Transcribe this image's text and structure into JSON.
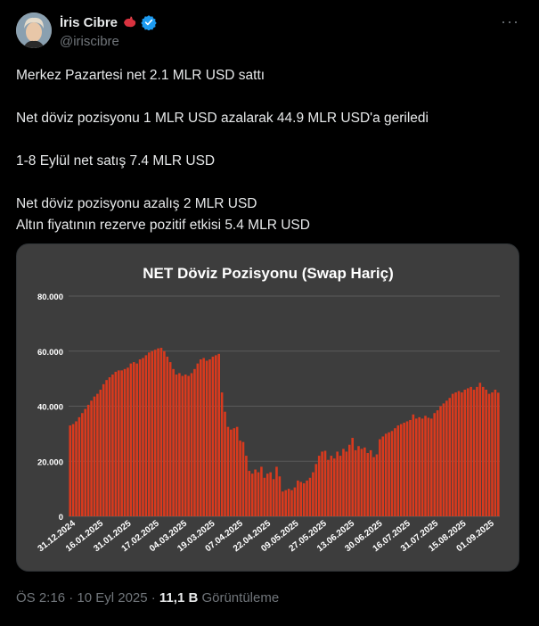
{
  "author": {
    "name": "İris Cibre",
    "handle": "@iriscibre",
    "verified_color": "#1d9bf0",
    "emoji_color": "#d9323f"
  },
  "tweet_lines": [
    "Merkez Pazartesi net 2.1 MLR USD sattı",
    "",
    "Net döviz pozisyonu 1 MLR USD azalarak 44.9 MLR USD'a geriledi",
    "",
    "1-8 Eylül net satış 7.4 MLR USD",
    "",
    "Net döviz pozisyonu azalış 2 MLR USD",
    "Altın fiyatının rezerve pozitif etkisi 5.4 MLR USD"
  ],
  "meta": {
    "time": "ÖS 2:16 · 10 Eyl 2025 · ",
    "views": "11,1 B",
    "views_label": " Görüntüleme"
  },
  "chart_data": {
    "type": "bar",
    "title": "NET Döviz Pozisyonu (Swap Hariç)",
    "ylim": [
      0,
      80000
    ],
    "y_ticks": [
      "0",
      "20.000",
      "40.000",
      "60.000",
      "80.000"
    ],
    "y_tick_values": [
      0,
      20000,
      40000,
      60000,
      80000
    ],
    "x_tick_labels": [
      "31.12.2024",
      "16.01.2025",
      "31.01.2025",
      "17.02.2025",
      "04.03.2025",
      "19.03.2025",
      "07.04.2025",
      "22.04.2025",
      "09.05.2025",
      "27.05.2025",
      "13.06.2025",
      "30.06.2025",
      "16.07.2025",
      "31.07.2025",
      "15.08.2025",
      "01.09.2025"
    ],
    "bar_color": "#d93a1e",
    "grid": true,
    "values": [
      33000,
      33500,
      34500,
      36000,
      37500,
      39000,
      40500,
      42000,
      43500,
      44500,
      46000,
      48000,
      49500,
      50500,
      51500,
      52500,
      53000,
      53000,
      53500,
      54000,
      55500,
      56000,
      55500,
      57000,
      57500,
      58500,
      59500,
      60000,
      60500,
      61000,
      61200,
      60000,
      58000,
      56000,
      53500,
      51500,
      52000,
      51000,
      51500,
      51000,
      52000,
      53500,
      55500,
      57000,
      57500,
      56500,
      57000,
      58000,
      58500,
      59000,
      45000,
      38000,
      32500,
      31500,
      32000,
      32500,
      27500,
      27000,
      22000,
      16500,
      15500,
      17000,
      16000,
      18000,
      14000,
      15500,
      16000,
      13500,
      18000,
      14500,
      9000,
      9500,
      10000,
      9500,
      10500,
      13000,
      12500,
      12000,
      13000,
      14000,
      16000,
      19000,
      22000,
      23500,
      23800,
      20500,
      22000,
      21000,
      23500,
      22000,
      24500,
      23500,
      26000,
      28500,
      24000,
      25500,
      24500,
      25000,
      23000,
      24000,
      21500,
      22500,
      28000,
      29000,
      30000,
      30500,
      31000,
      32000,
      33000,
      33500,
      34000,
      34500,
      35000,
      37000,
      35500,
      36000,
      35500,
      36500,
      35800,
      35500,
      37500,
      38500,
      40000,
      41000,
      42000,
      43000,
      44500,
      45000,
      45500,
      45000,
      46000,
      46500,
      47000,
      46000,
      47000,
      48500,
      47000,
      46000,
      44500,
      45000,
      46000,
      44900
    ]
  }
}
